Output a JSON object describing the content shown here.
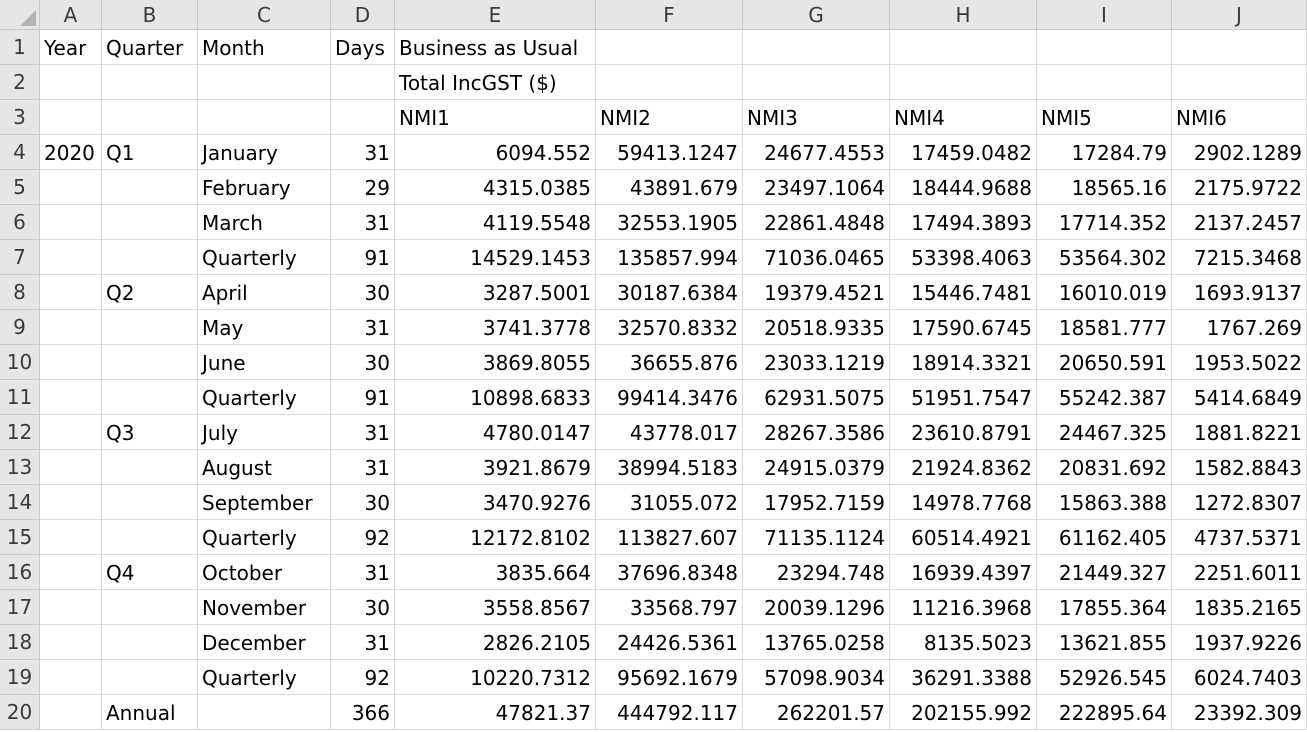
{
  "column_headers": [
    "A",
    "B",
    "C",
    "D",
    "E",
    "F",
    "G",
    "H",
    "I",
    "J"
  ],
  "row_numbers": [
    "1",
    "2",
    "3",
    "4",
    "5",
    "6",
    "7",
    "8",
    "9",
    "10",
    "11",
    "12",
    "13",
    "14",
    "15",
    "16",
    "17",
    "18",
    "19",
    "20"
  ],
  "rows": [
    [
      "Year",
      "Quarter",
      "Month",
      "Days",
      "Business as Usual",
      "",
      "",
      "",
      "",
      ""
    ],
    [
      "",
      "",
      "",
      "",
      "Total IncGST ($)",
      "",
      "",
      "",
      "",
      ""
    ],
    [
      "",
      "",
      "",
      "",
      "NMI1",
      "NMI2",
      "NMI3",
      "NMI4",
      "NMI5",
      "NMI6"
    ],
    [
      "2020",
      "Q1",
      "January",
      "31",
      "6094.552",
      "59413.1247",
      "24677.4553",
      "17459.0482",
      "17284.79",
      "2902.1289"
    ],
    [
      "",
      "",
      "February",
      "29",
      "4315.0385",
      "43891.679",
      "23497.1064",
      "18444.9688",
      "18565.16",
      "2175.9722"
    ],
    [
      "",
      "",
      "March",
      "31",
      "4119.5548",
      "32553.1905",
      "22861.4848",
      "17494.3893",
      "17714.352",
      "2137.2457"
    ],
    [
      "",
      "",
      "Quarterly",
      "91",
      "14529.1453",
      "135857.994",
      "71036.0465",
      "53398.4063",
      "53564.302",
      "7215.3468"
    ],
    [
      "",
      "Q2",
      "April",
      "30",
      "3287.5001",
      "30187.6384",
      "19379.4521",
      "15446.7481",
      "16010.019",
      "1693.9137"
    ],
    [
      "",
      "",
      "May",
      "31",
      "3741.3778",
      "32570.8332",
      "20518.9335",
      "17590.6745",
      "18581.777",
      "1767.269"
    ],
    [
      "",
      "",
      "June",
      "30",
      "3869.8055",
      "36655.876",
      "23033.1219",
      "18914.3321",
      "20650.591",
      "1953.5022"
    ],
    [
      "",
      "",
      "Quarterly",
      "91",
      "10898.6833",
      "99414.3476",
      "62931.5075",
      "51951.7547",
      "55242.387",
      "5414.6849"
    ],
    [
      "",
      "Q3",
      "July",
      "31",
      "4780.0147",
      "43778.017",
      "28267.3586",
      "23610.8791",
      "24467.325",
      "1881.8221"
    ],
    [
      "",
      "",
      "August",
      "31",
      "3921.8679",
      "38994.5183",
      "24915.0379",
      "21924.8362",
      "20831.692",
      "1582.8843"
    ],
    [
      "",
      "",
      "September",
      "30",
      "3470.9276",
      "31055.072",
      "17952.7159",
      "14978.7768",
      "15863.388",
      "1272.8307"
    ],
    [
      "",
      "",
      "Quarterly",
      "92",
      "12172.8102",
      "113827.607",
      "71135.1124",
      "60514.4921",
      "61162.405",
      "4737.5371"
    ],
    [
      "",
      "Q4",
      "October",
      "31",
      "3835.664",
      "37696.8348",
      "23294.748",
      "16939.4397",
      "21449.327",
      "2251.6011"
    ],
    [
      "",
      "",
      "November",
      "30",
      "3558.8567",
      "33568.797",
      "20039.1296",
      "11216.3968",
      "17855.364",
      "1835.2165"
    ],
    [
      "",
      "",
      "December",
      "31",
      "2826.2105",
      "24426.5361",
      "13765.0258",
      "8135.5023",
      "13621.855",
      "1937.9226"
    ],
    [
      "",
      "",
      "Quarterly",
      "92",
      "10220.7312",
      "95692.1679",
      "57098.9034",
      "36291.3388",
      "52926.545",
      "6024.7403"
    ],
    [
      "",
      "Annual",
      "",
      "366",
      "47821.37",
      "444792.117",
      "262201.57",
      "202155.992",
      "222895.64",
      "23392.309"
    ]
  ]
}
